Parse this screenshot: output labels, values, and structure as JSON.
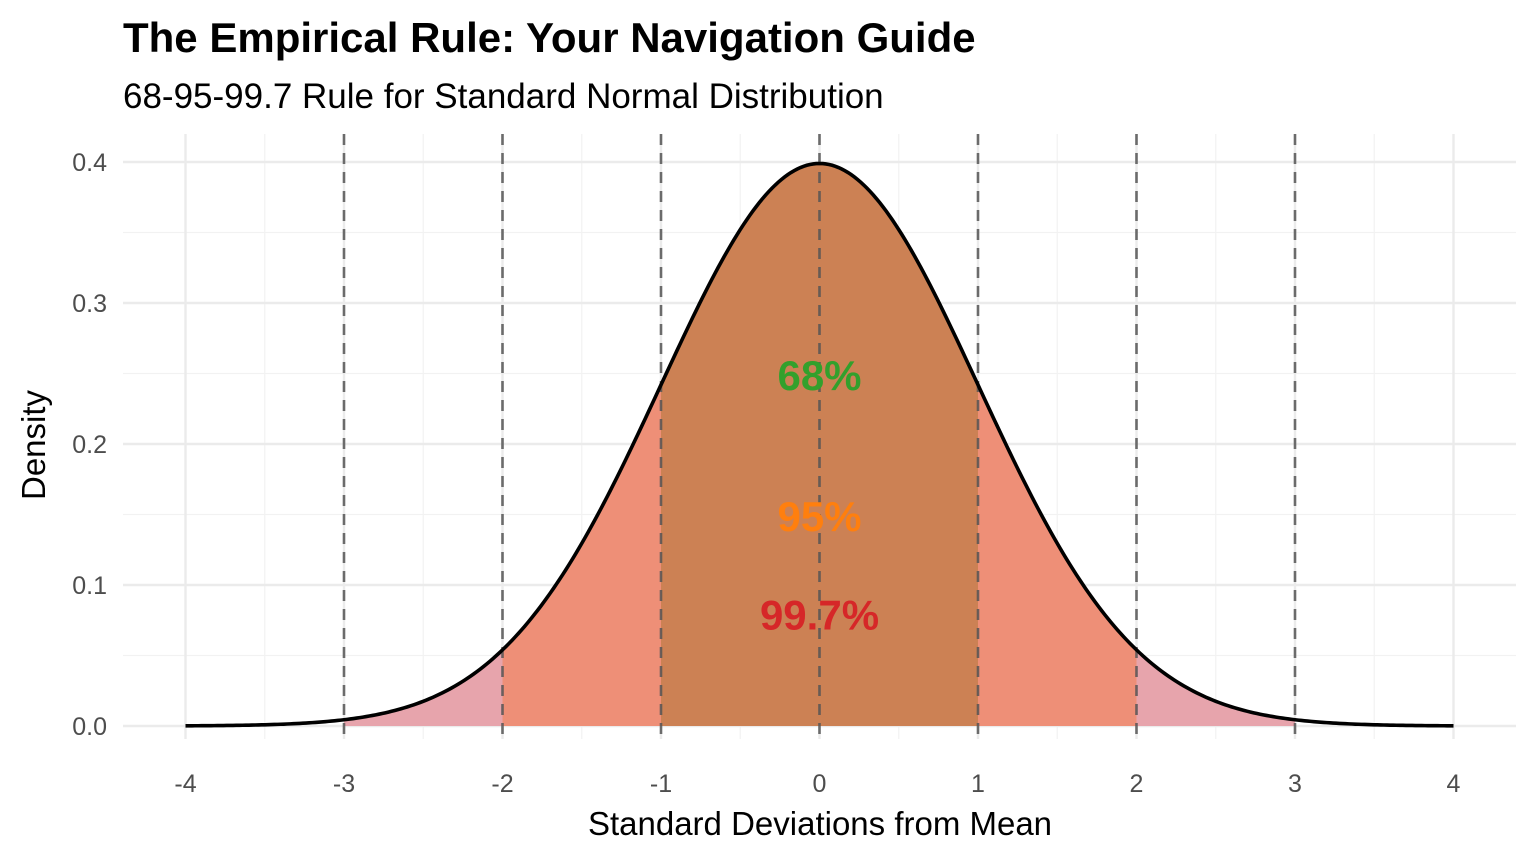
{
  "chart_data": {
    "type": "area",
    "title": "The Empirical Rule: Your Navigation Guide",
    "subtitle": "68-95-99.7 Rule for Standard Normal Distribution",
    "xlabel": "Standard Deviations from Mean",
    "ylabel": "Density",
    "xlim": [
      -4,
      4
    ],
    "ylim": [
      0,
      0.4
    ],
    "x_ticks": [
      {
        "value": -4,
        "label": "-4"
      },
      {
        "value": -3,
        "label": "-3"
      },
      {
        "value": -2,
        "label": "-2"
      },
      {
        "value": -1,
        "label": "-1"
      },
      {
        "value": 0,
        "label": "0"
      },
      {
        "value": 1,
        "label": "1"
      },
      {
        "value": 2,
        "label": "2"
      },
      {
        "value": 3,
        "label": "3"
      },
      {
        "value": 4,
        "label": "4"
      }
    ],
    "y_ticks": [
      {
        "value": 0.0,
        "label": "0.0"
      },
      {
        "value": 0.1,
        "label": "0.1"
      },
      {
        "value": 0.2,
        "label": "0.2"
      },
      {
        "value": 0.3,
        "label": "0.3"
      },
      {
        "value": 0.4,
        "label": "0.4"
      }
    ],
    "curve": {
      "name": "standard normal density",
      "mean": 0,
      "sd": 1,
      "color": "#000000"
    },
    "shaded_regions": [
      {
        "name": "99.7%",
        "from": -3,
        "to": 3,
        "color": "#E7A4AC"
      },
      {
        "name": "95%",
        "from": -2,
        "to": 2,
        "color": "#EE8F77"
      },
      {
        "name": "68%",
        "from": -1,
        "to": 1,
        "color": "#CC8154"
      }
    ],
    "reference_lines": [
      -3,
      -2,
      -1,
      0,
      1,
      2,
      3
    ],
    "annotations": [
      {
        "text": "68%",
        "x": 0,
        "y": 0.249,
        "color": "#33A02C"
      },
      {
        "text": "95%",
        "x": 0,
        "y": 0.149,
        "color": "#FF7F0E"
      },
      {
        "text": "99.7%",
        "x": 0,
        "y": 0.079,
        "color": "#D62728"
      }
    ],
    "grid": true
  }
}
